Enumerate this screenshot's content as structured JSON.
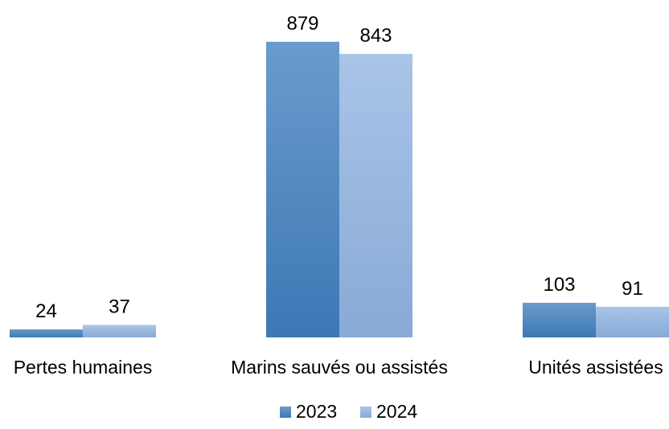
{
  "chart_data": {
    "type": "bar",
    "categories": [
      "Pertes humaines",
      "Marins sauvés ou assistés",
      "Unités assistées"
    ],
    "series": [
      {
        "name": "2023",
        "values": [
          24,
          879,
          103
        ]
      },
      {
        "name": "2024",
        "values": [
          37,
          843,
          91
        ]
      }
    ],
    "ylim": [
      0,
      879
    ],
    "grid": false,
    "legend": "bottom",
    "colors": {
      "2023": {
        "top": "#6a9bcc",
        "bottom": "#3d78b5"
      },
      "2024": {
        "top": "#a9c4e8",
        "bottom": "#88aad6"
      }
    }
  }
}
